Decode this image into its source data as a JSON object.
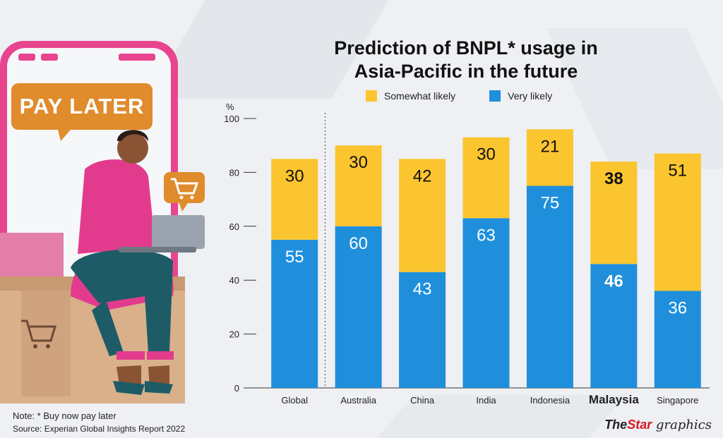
{
  "title_line1": "Prediction of BNPL* usage in",
  "title_line2": "Asia-Pacific in the future",
  "illustration": {
    "badge_text": "PAY LATER",
    "icon": "shopping-cart-icon"
  },
  "footer": {
    "note": "Note: * Buy now pay later",
    "source": "Source: Experian Global Insights Report 2022",
    "brand_the": "The",
    "brand_star": "Star",
    "brand_graphics": " graphics"
  },
  "colors": {
    "somewhat": "#fbc52f",
    "very": "#1f8fdc",
    "brand_red": "#d71920"
  },
  "chart_data": {
    "type": "bar",
    "stacked": true,
    "title": "Prediction of BNPL* usage in Asia-Pacific in the future",
    "ylabel": "%",
    "ylim": [
      0,
      100
    ],
    "yticks": [
      0,
      20,
      40,
      60,
      80,
      100
    ],
    "legend": "top",
    "highlight": "Malaysia",
    "categories": [
      "Global",
      "Australia",
      "China",
      "India",
      "Indonesia",
      "Malaysia",
      "Singapore"
    ],
    "series": [
      {
        "name": "Very likely",
        "color": "#1f8fdc",
        "values": [
          55,
          60,
          43,
          63,
          75,
          46,
          36
        ]
      },
      {
        "name": "Somewhat likely",
        "color": "#fbc52f",
        "values": [
          30,
          30,
          42,
          30,
          21,
          38,
          51
        ]
      }
    ]
  }
}
